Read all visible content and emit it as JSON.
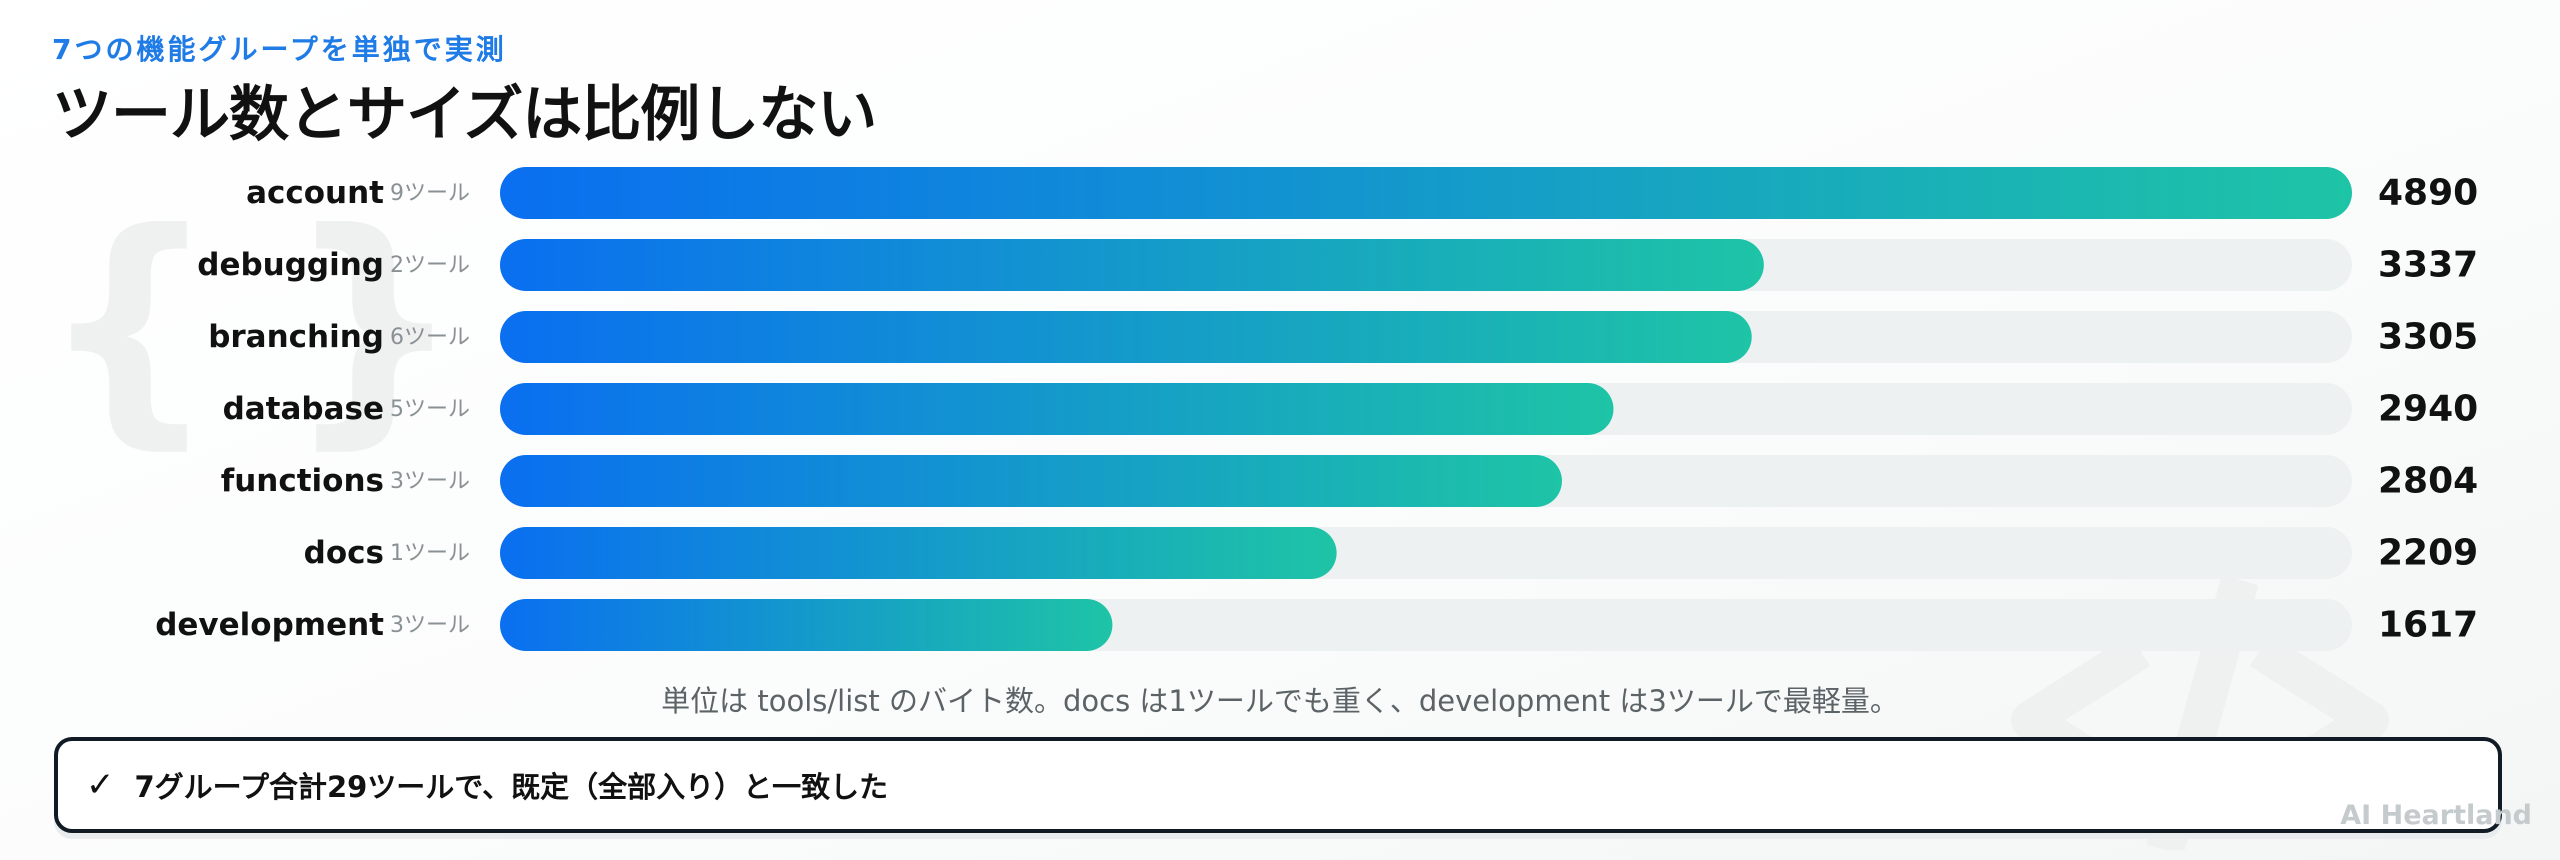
{
  "eyebrow": "7つの機能グループを単独で実測",
  "title": "ツール数とサイズは比例しない",
  "caption": "単位は tools/list のバイト数。docs は1ツールでも重く、development は3ツールで最軽量。",
  "note": {
    "check": "✓",
    "text": "7グループ合計29ツールで、既定（全部入り）と一致した"
  },
  "brand": "AI Heartland",
  "colors": {
    "bar_start": "#0a6ff0",
    "bar_end": "#1ec4a6",
    "track": "#eef1f2",
    "eyebrow": "#1f7be6"
  },
  "chart_data": {
    "type": "bar",
    "orientation": "horizontal",
    "categories": [
      "account",
      "debugging",
      "branching",
      "database",
      "functions",
      "docs",
      "development"
    ],
    "tool_labels": [
      "9ツール",
      "2ツール",
      "6ツール",
      "5ツール",
      "3ツール",
      "1ツール",
      "3ツール"
    ],
    "values": [
      4890,
      3337,
      3305,
      2940,
      2804,
      2209,
      1617
    ],
    "xlim": [
      0,
      4890
    ],
    "grid": false
  }
}
